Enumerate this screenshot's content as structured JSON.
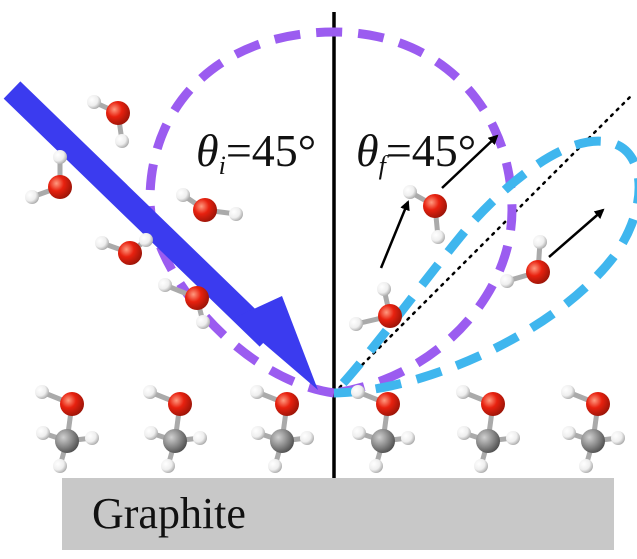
{
  "incident_angle": {
    "symbol": "θ",
    "subscript": "i",
    "value": "=45°"
  },
  "final_angle": {
    "symbol": "θ",
    "subscript": "f",
    "value": "=45°"
  },
  "substrate_label": "Graphite",
  "colors": {
    "beam": "#3b3bef",
    "incident_lobe": "#9b5cf0",
    "specular_lobe": "#3fb6ee",
    "oxygen": "#e8210f",
    "hydrogen": "#f4f4f4",
    "carbon": "#8a8a8a",
    "substrate": "#c8c8c8"
  }
}
